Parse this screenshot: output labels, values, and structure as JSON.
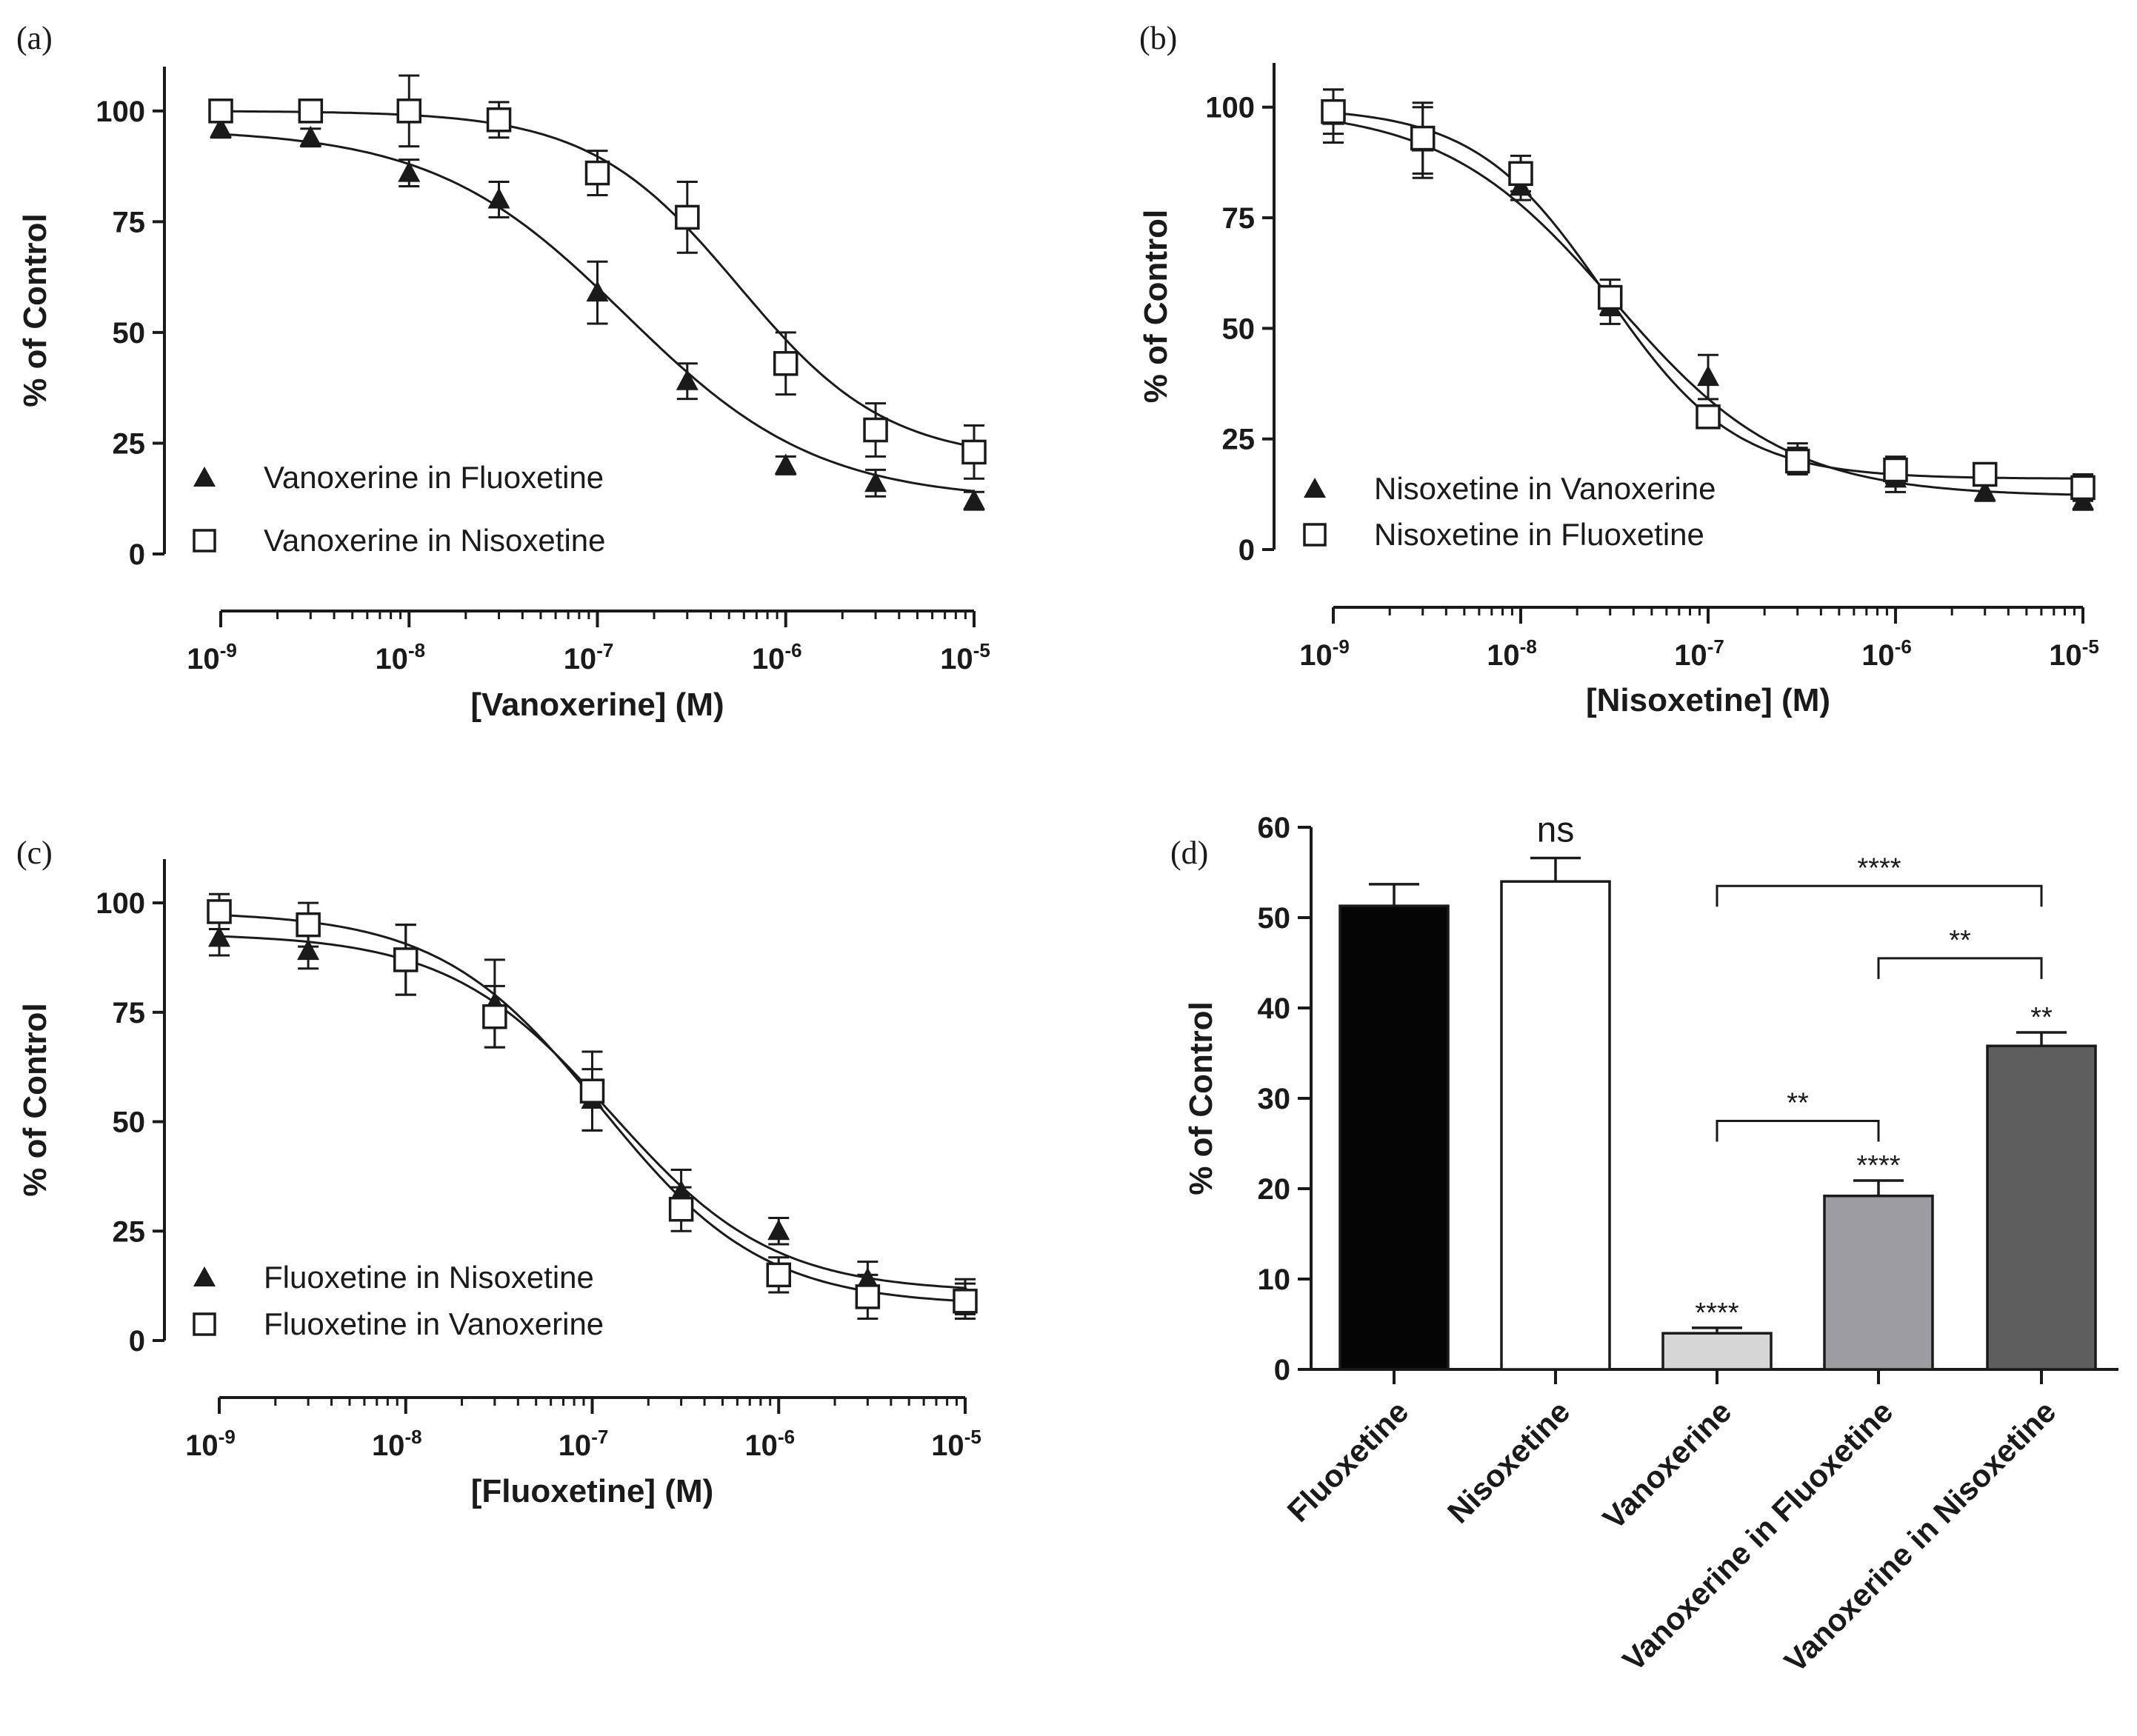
{
  "chart_data": [
    {
      "panel": "(a)",
      "type": "scatter",
      "x_scale": "log",
      "xlabel": "[Vanoxerine] (M)",
      "ylabel": "% of Control",
      "x_tick_labels": [
        {
          "x": 1e-09,
          "base": "10",
          "exp": "-9"
        },
        {
          "x": 1e-08,
          "base": "10",
          "exp": "-8"
        },
        {
          "x": 1e-07,
          "base": "10",
          "exp": "-7"
        },
        {
          "x": 1e-06,
          "base": "10",
          "exp": "-6"
        },
        {
          "x": 1e-05,
          "base": "10",
          "exp": "-5"
        }
      ],
      "y_ticks": [
        0,
        25,
        50,
        75,
        100
      ],
      "xlim": [
        1e-09,
        1e-05
      ],
      "ylim": [
        0,
        110
      ],
      "legend_position": "bottom-left",
      "series": [
        {
          "name": "Vanoxerine in Fluoxetine",
          "marker": "filled-triangle",
          "x": [
            1e-09,
            3e-09,
            1e-08,
            3e-08,
            1e-07,
            3e-07,
            1e-06,
            3e-06,
            1e-05
          ],
          "y": [
            96,
            94,
            86,
            80,
            59,
            39,
            20,
            16,
            12
          ],
          "err": [
            2,
            2,
            3,
            4,
            7,
            4,
            2,
            3,
            2
          ],
          "fit": {
            "bottom": 12,
            "top": 96,
            "log_ec50": -6.85,
            "hill": 0.85
          }
        },
        {
          "name": "Vanoxerine in Nisoxetine",
          "marker": "open-square",
          "x": [
            1e-09,
            3e-09,
            1e-08,
            3e-08,
            1e-07,
            3e-07,
            1e-06,
            3e-06,
            1e-05
          ],
          "y": [
            100,
            100,
            100,
            98,
            86,
            76,
            43,
            28,
            23
          ],
          "err": [
            2,
            2,
            8,
            4,
            5,
            8,
            7,
            6,
            6
          ],
          "fit": {
            "bottom": 21,
            "top": 100,
            "log_ec50": -6.25,
            "hill": 1.1
          }
        }
      ]
    },
    {
      "panel": "(b)",
      "type": "scatter",
      "x_scale": "log",
      "xlabel": "[Nisoxetine] (M)",
      "ylabel": "% of Control",
      "x_tick_labels": [
        {
          "x": 1e-09,
          "base": "10",
          "exp": "-9"
        },
        {
          "x": 1e-08,
          "base": "10",
          "exp": "-8"
        },
        {
          "x": 1e-07,
          "base": "10",
          "exp": "-7"
        },
        {
          "x": 1e-06,
          "base": "10",
          "exp": "-6"
        },
        {
          "x": 1e-05,
          "base": "10",
          "exp": "-5"
        }
      ],
      "y_ticks": [
        0,
        25,
        50,
        75,
        100
      ],
      "xlim": [
        1e-09,
        1e-05
      ],
      "ylim": [
        0,
        110
      ],
      "legend_position": "bottom-left",
      "series": [
        {
          "name": "Nisoxetine in Vanoxerine",
          "marker": "filled-triangle",
          "x": [
            1e-09,
            3e-09,
            1e-08,
            3e-08,
            1e-07,
            3e-07,
            1e-06,
            3e-06,
            1e-05
          ],
          "y": [
            98,
            92,
            82,
            55,
            39,
            21,
            16,
            13,
            11
          ],
          "err": [
            6,
            8,
            3,
            4,
            5,
            3,
            3,
            2,
            2
          ],
          "fit": {
            "bottom": 12,
            "top": 100,
            "log_ec50": -7.5,
            "hill": 0.95
          }
        },
        {
          "name": "Nisoxetine in Fluoxetine",
          "marker": "open-square",
          "x": [
            1e-09,
            3e-09,
            1e-08,
            3e-08,
            1e-07,
            3e-07,
            1e-06,
            3e-06,
            1e-05
          ],
          "y": [
            99,
            93,
            85,
            57,
            30,
            20,
            18,
            17,
            14
          ],
          "err": [
            5,
            8,
            4,
            4,
            2,
            3,
            3,
            2,
            3
          ],
          "fit": {
            "bottom": 16,
            "top": 100,
            "log_ec50": -7.55,
            "hill": 1.25
          }
        }
      ]
    },
    {
      "panel": "(c)",
      "type": "scatter",
      "x_scale": "log",
      "xlabel": "[Fluoxetine] (M)",
      "ylabel": "% of Control",
      "x_tick_labels": [
        {
          "x": 1e-09,
          "base": "10",
          "exp": "-9"
        },
        {
          "x": 1e-08,
          "base": "10",
          "exp": "-8"
        },
        {
          "x": 1e-07,
          "base": "10",
          "exp": "-7"
        },
        {
          "x": 1e-06,
          "base": "10",
          "exp": "-6"
        },
        {
          "x": 1e-05,
          "base": "10",
          "exp": "-5"
        }
      ],
      "y_ticks": [
        0,
        25,
        50,
        75,
        100
      ],
      "xlim": [
        1e-09,
        1e-05
      ],
      "ylim": [
        0,
        110
      ],
      "legend_position": "bottom-left",
      "series": [
        {
          "name": "Fluoxetine in Nisoxetine",
          "marker": "filled-triangle",
          "x": [
            1e-09,
            3e-09,
            1e-08,
            3e-08,
            1e-07,
            3e-07,
            1e-06,
            3e-06,
            1e-05
          ],
          "y": [
            92,
            89,
            87,
            77,
            55,
            34,
            25,
            14,
            10
          ],
          "err": [
            4,
            4,
            8,
            10,
            7,
            5,
            3,
            4,
            4
          ],
          "fit": {
            "bottom": 11,
            "top": 93,
            "log_ec50": -6.9,
            "hill": 1.0
          }
        },
        {
          "name": "Fluoxetine in Vanoxerine",
          "marker": "open-square",
          "x": [
            1e-09,
            3e-09,
            1e-08,
            3e-08,
            1e-07,
            3e-07,
            1e-06,
            3e-06,
            1e-05
          ],
          "y": [
            98,
            95,
            87,
            74,
            57,
            30,
            15,
            10,
            9
          ],
          "err": [
            4,
            5,
            8,
            7,
            9,
            5,
            4,
            5,
            4
          ],
          "fit": {
            "bottom": 8,
            "top": 98,
            "log_ec50": -6.95,
            "hill": 1.0
          }
        }
      ]
    },
    {
      "panel": "(d)",
      "type": "bar",
      "ylabel": "% of Control",
      "ylim": [
        0,
        60
      ],
      "y_ticks": [
        0,
        10,
        20,
        30,
        40,
        50,
        60
      ],
      "categories": [
        "Fluoxetine",
        "Nisoxetine",
        "Vanoxerine",
        "Vanoxerine in Fluoxetine",
        "Vanoxerine in Nisoxetine"
      ],
      "values": [
        51.3,
        54,
        4,
        19.2,
        35.8
      ],
      "err": [
        2.4,
        2.6,
        0.6,
        1.7,
        1.5
      ],
      "bar_colors": [
        "#050505",
        "#ffffff",
        "#d6d6d6",
        "#9c9ca1",
        "#5e5e5e"
      ],
      "bar_labels": [
        "",
        "ns",
        "****",
        "****",
        "**"
      ],
      "brackets": [
        {
          "from": 2,
          "to": 4,
          "y": 53.5,
          "label": "****"
        },
        {
          "from": 3,
          "to": 4,
          "y": 45.5,
          "label": "**"
        },
        {
          "from": 2,
          "to": 3,
          "y": 27.5,
          "label": "**"
        }
      ]
    }
  ]
}
